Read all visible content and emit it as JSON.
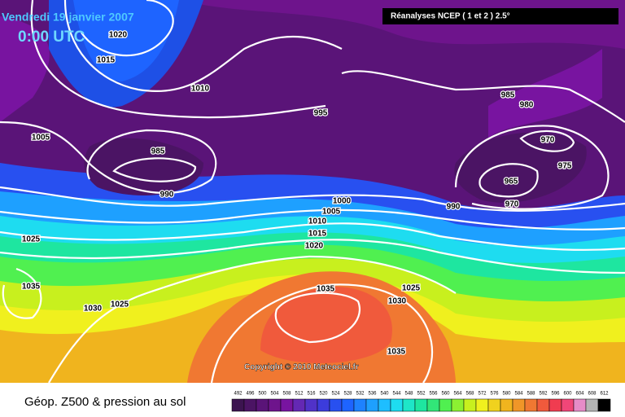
{
  "header": {
    "date": "Vendredi 19 janvier 2007",
    "time": "0:00 UTC",
    "source": "Réanalyses NCEP ( 1 et 2 ) 2.5°"
  },
  "isobar_labels": [
    1020,
    1015,
    1010,
    995,
    985,
    980,
    970,
    975,
    1005,
    985,
    990,
    965,
    970,
    990,
    1000,
    1005,
    1010,
    1015,
    1020,
    1025,
    1035,
    1030,
    1025,
    1035,
    1025,
    1030,
    1035
  ],
  "copyright": "Copyright © 2010 Meteociel.fr",
  "footer": {
    "title": "Géop. Z500 & pression au sol"
  },
  "colorbar": {
    "values": [
      492,
      496,
      500,
      504,
      508,
      512,
      516,
      520,
      524,
      528,
      532,
      536,
      540,
      544,
      548,
      552,
      556,
      560,
      564,
      568,
      572,
      576,
      580,
      584,
      588,
      592,
      596,
      600,
      604,
      608,
      612
    ],
    "colors": [
      "#3c1450",
      "#4b1464",
      "#5a1478",
      "#6e148c",
      "#7814a0",
      "#6428b4",
      "#5032c8",
      "#3c3cdc",
      "#2850f0",
      "#1e64ff",
      "#1e82ff",
      "#1ea0ff",
      "#1ebeff",
      "#1edcf0",
      "#1ee6c8",
      "#1ee6a0",
      "#32e678",
      "#50f050",
      "#8cf032",
      "#c8f01e",
      "#f0f01e",
      "#f0d21e",
      "#f0b41e",
      "#f09628",
      "#f07832",
      "#f05a3c",
      "#f03c50",
      "#f04678",
      "#e68cc8",
      "#b4b4b4",
      "#000000"
    ]
  }
}
